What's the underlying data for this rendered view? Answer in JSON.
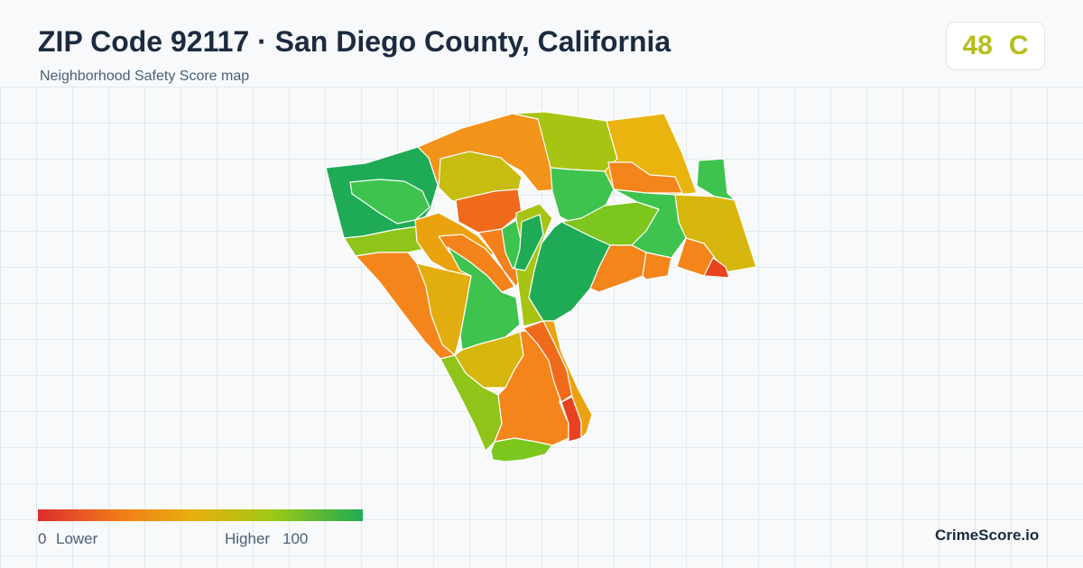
{
  "header": {
    "title": "ZIP Code 92117 · San Diego County, California",
    "subtitle": "Neighborhood Safety Score map"
  },
  "score": {
    "value": "48",
    "grade": "C",
    "color": "#b7bd1a"
  },
  "legend": {
    "min_label": "0",
    "low_label": "Lower",
    "high_label": "Higher",
    "max_label": "100",
    "colors": [
      "#dd2d2d",
      "#f07b1a",
      "#e8b00e",
      "#9ec814",
      "#1fab55"
    ]
  },
  "brand": "CrimeScore.io",
  "map": {
    "colors": {
      "green_dark": "#1fab55",
      "green": "#3ec34f",
      "lime": "#7cc61e",
      "yellow_green": "#a8c412",
      "mustard": "#d6b50d",
      "amber": "#eea20f",
      "orange": "#f4851a",
      "orange_red": "#f06a1c",
      "red": "#e8421f"
    }
  }
}
